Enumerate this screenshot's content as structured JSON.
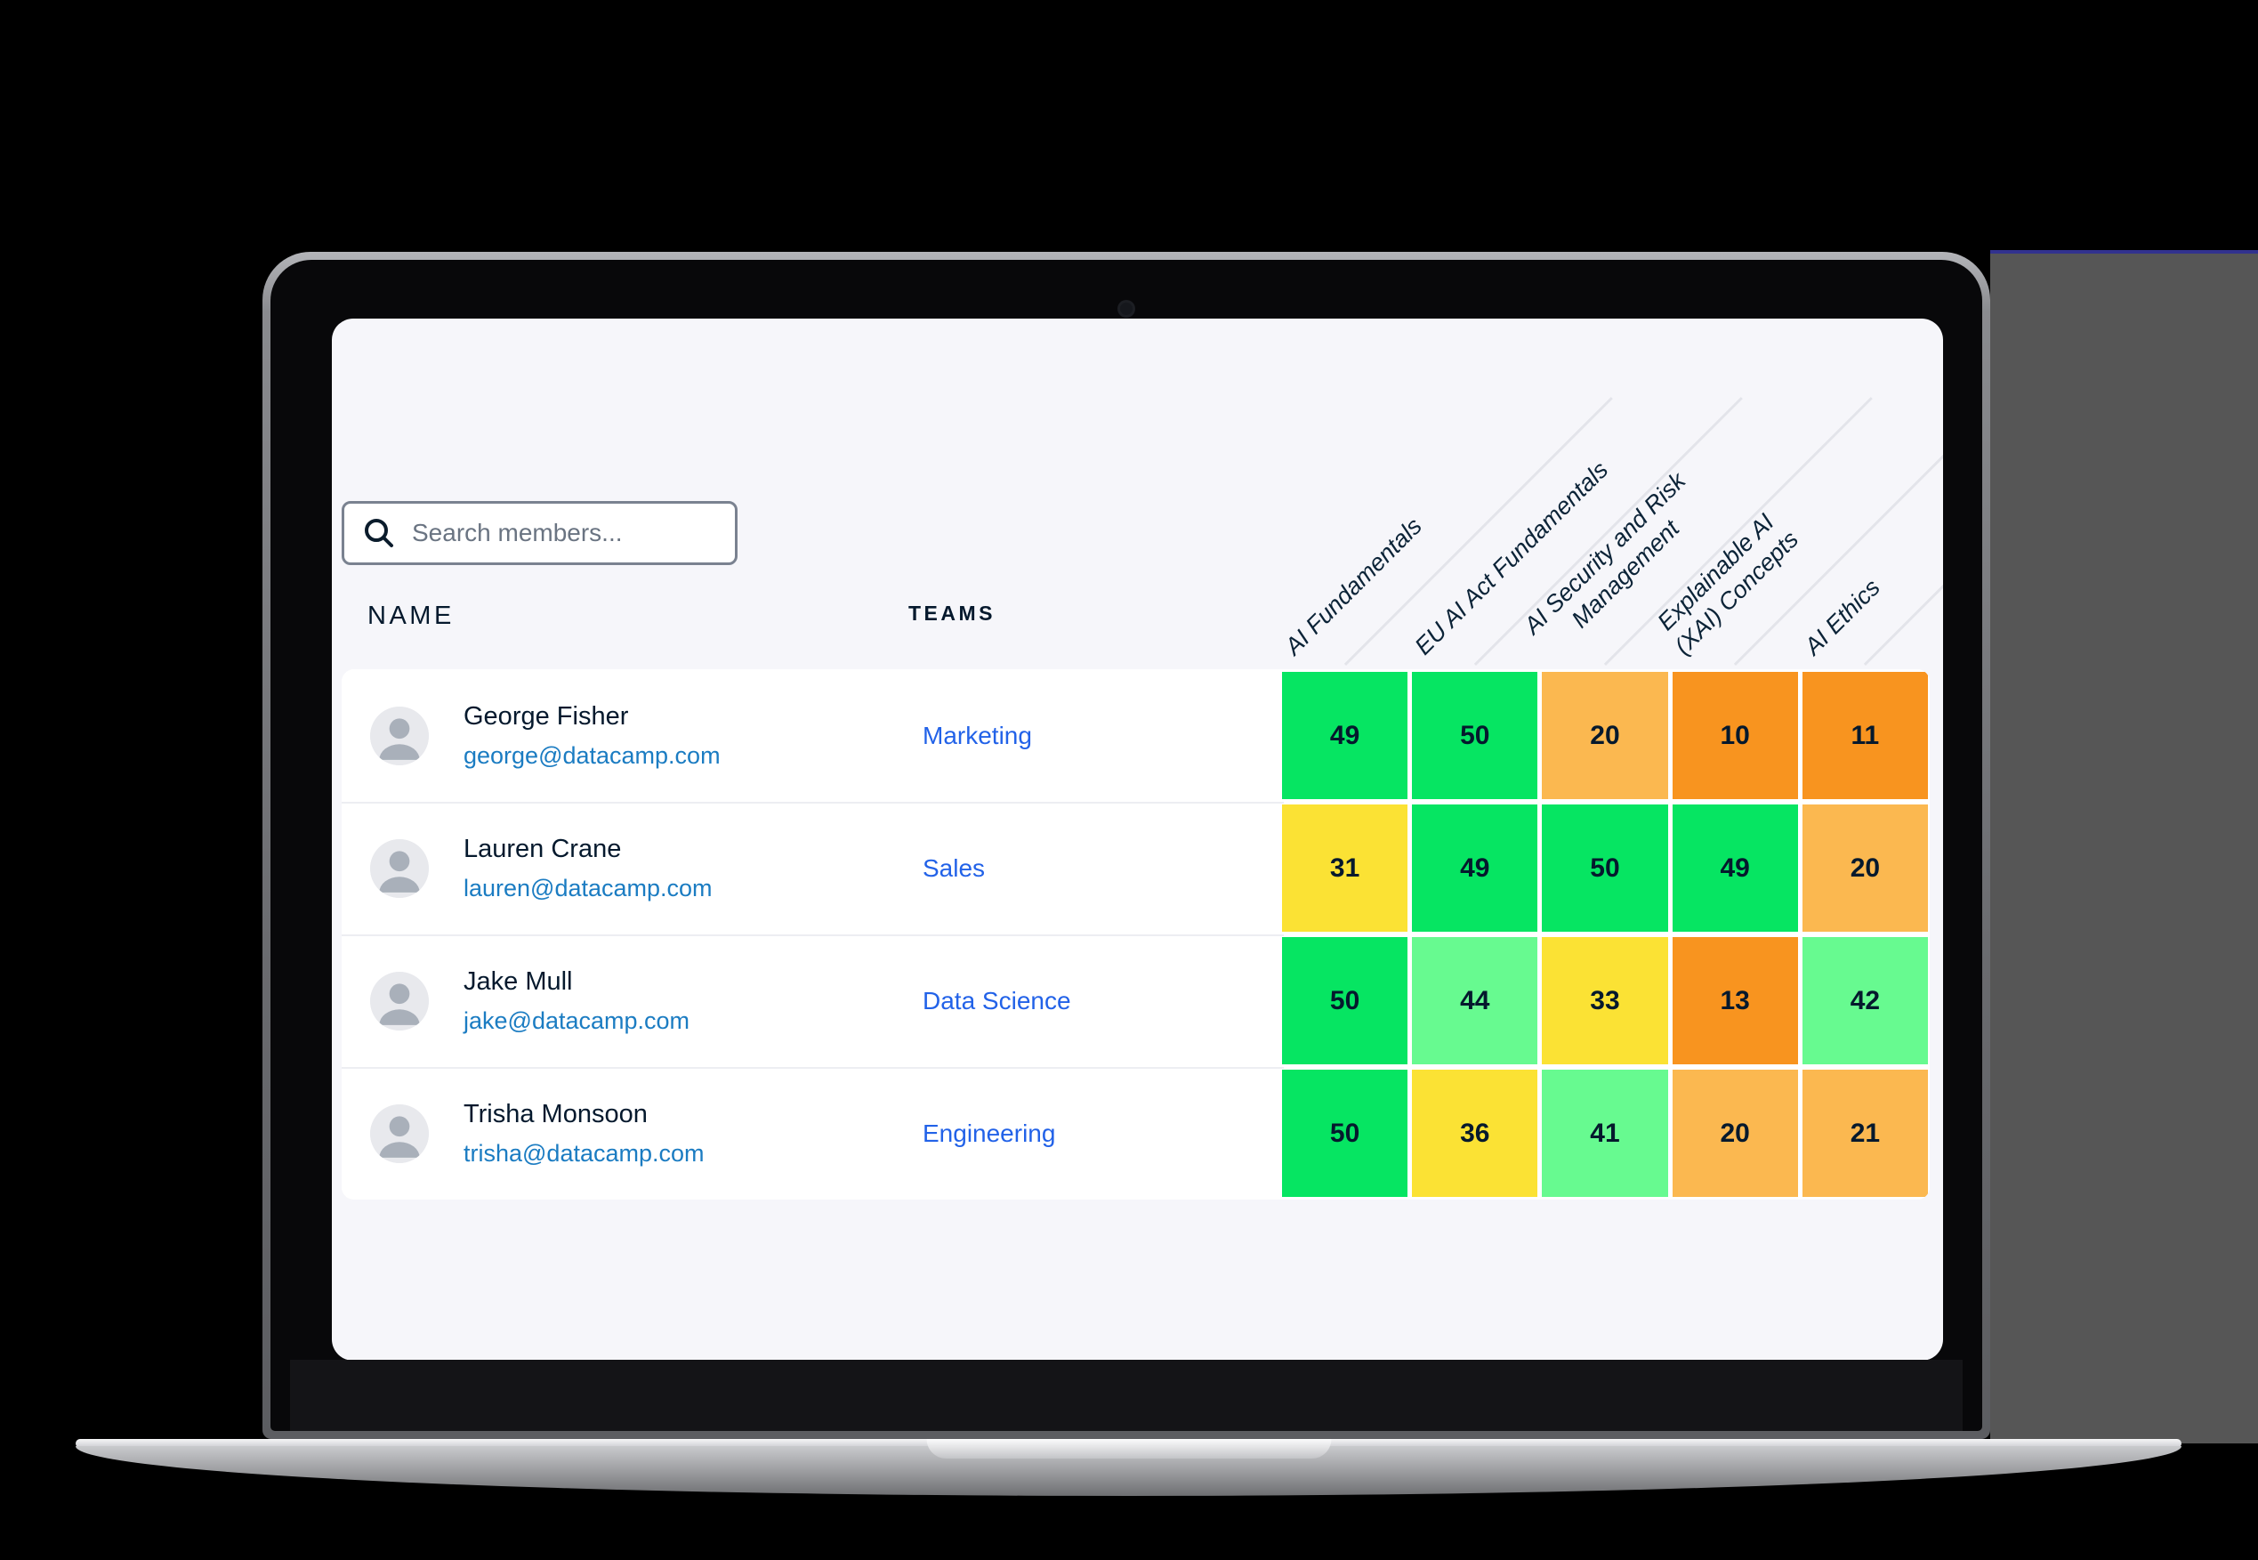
{
  "screen": {
    "search": {
      "placeholder": "Search members..."
    },
    "table": {
      "name_header": "NAME",
      "teams_header": "TEAMS",
      "skill_headers": [
        {
          "lines": [
            "AI Fundamentals"
          ]
        },
        {
          "lines": [
            "EU AI Act Fundamentals"
          ]
        },
        {
          "lines": [
            "AI Security and Risk",
            "Management"
          ]
        },
        {
          "lines": [
            "Explainable AI",
            "(XAI) Concepts"
          ]
        },
        {
          "lines": [
            "AI Ethics"
          ]
        }
      ],
      "members": [
        {
          "name": "George Fisher",
          "email": "george@datacamp.com",
          "team": "Marketing",
          "scores": [
            {
              "value": 49,
              "level": "green"
            },
            {
              "value": 50,
              "level": "green"
            },
            {
              "value": 20,
              "level": "light-orange"
            },
            {
              "value": 10,
              "level": "orange"
            },
            {
              "value": 11,
              "level": "orange"
            }
          ]
        },
        {
          "name": "Lauren Crane",
          "email": "lauren@datacamp.com",
          "team": "Sales",
          "scores": [
            {
              "value": 31,
              "level": "yellow"
            },
            {
              "value": 49,
              "level": "green"
            },
            {
              "value": 50,
              "level": "green"
            },
            {
              "value": 49,
              "level": "green"
            },
            {
              "value": 20,
              "level": "light-orange"
            }
          ]
        },
        {
          "name": "Jake Mull",
          "email": "jake@datacamp.com",
          "team": "Data Science",
          "scores": [
            {
              "value": 50,
              "level": "green"
            },
            {
              "value": 44,
              "level": "light-green"
            },
            {
              "value": 33,
              "level": "yellow"
            },
            {
              "value": 13,
              "level": "orange"
            },
            {
              "value": 42,
              "level": "light-green"
            }
          ]
        },
        {
          "name": "Trisha Monsoon",
          "email": "trisha@datacamp.com",
          "team": "Engineering",
          "scores": [
            {
              "value": 50,
              "level": "green"
            },
            {
              "value": 36,
              "level": "yellow"
            },
            {
              "value": 41,
              "level": "light-green"
            },
            {
              "value": 20,
              "level": "light-orange"
            },
            {
              "value": 21,
              "level": "light-orange"
            }
          ]
        }
      ]
    }
  },
  "colors": {
    "green": "#06E562",
    "light-green": "#67FA90",
    "yellow": "#FBE234",
    "light-orange": "#FBB850",
    "orange": "#F8941F",
    "navy_text": "#05192D",
    "email_blue": "#1B7CC2",
    "team_blue": "#2262E8",
    "screen_bg": "#F6F6FA",
    "gray_panel": "#565656"
  },
  "chart_data": {
    "type": "heatmap",
    "rows": [
      "George Fisher",
      "Lauren Crane",
      "Jake Mull",
      "Trisha Monsoon"
    ],
    "columns": [
      "AI Fundamentals",
      "EU AI Act Fundamentals",
      "AI Security and Risk Management",
      "Explainable AI (XAI) Concepts",
      "AI Ethics"
    ],
    "values": [
      [
        49,
        50,
        20,
        10,
        11
      ],
      [
        31,
        49,
        50,
        49,
        20
      ],
      [
        50,
        44,
        33,
        13,
        42
      ],
      [
        50,
        36,
        41,
        20,
        21
      ]
    ],
    "value_range": [
      0,
      50
    ],
    "legend_position": "none",
    "grid": false
  }
}
